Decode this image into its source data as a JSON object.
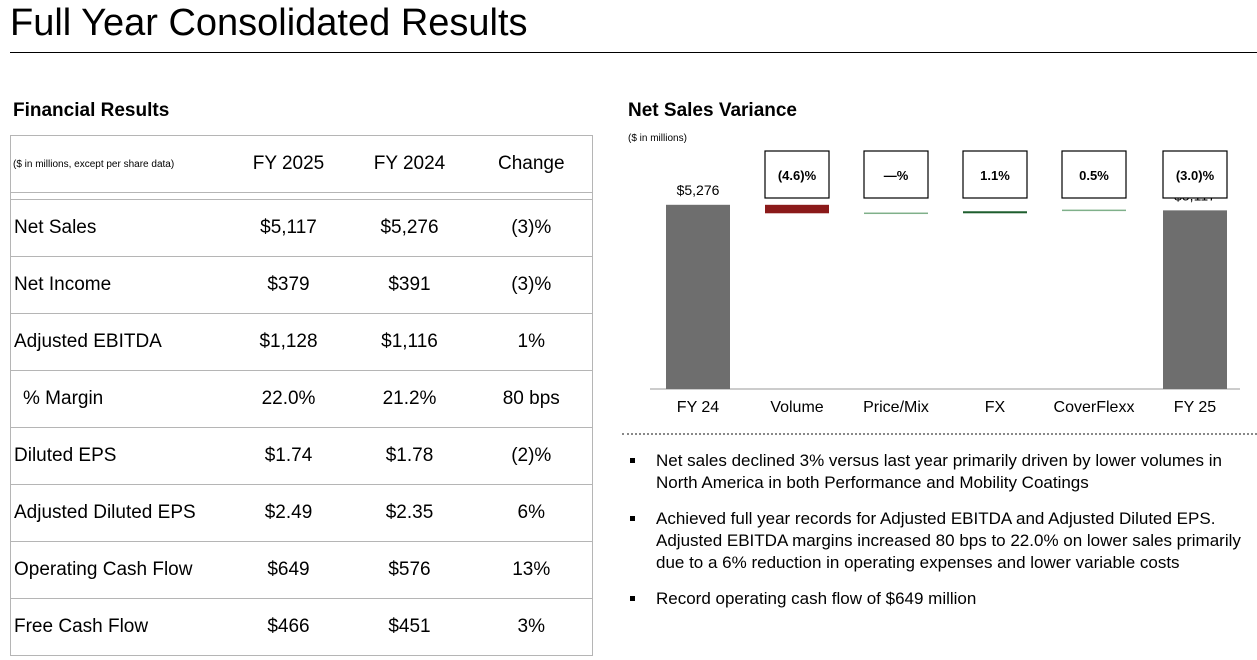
{
  "page": {
    "title": "Full Year Consolidated Results"
  },
  "financial_results": {
    "title": "Financial Results",
    "header_note": "($ in millions, except per share data)",
    "columns": [
      "FY 2025",
      "FY 2024",
      "Change"
    ],
    "rows": [
      {
        "label": "Net Sales",
        "fy2025": "$5,117",
        "fy2024": "$5,276",
        "change": "(3)%",
        "indent": false
      },
      {
        "label": "Net Income",
        "fy2025": "$379",
        "fy2024": "$391",
        "change": "(3)%",
        "indent": false
      },
      {
        "label": "Adjusted EBITDA",
        "fy2025": "$1,128",
        "fy2024": "$1,116",
        "change": "1%",
        "indent": false
      },
      {
        "label": "% Margin",
        "fy2025": "22.0%",
        "fy2024": "21.2%",
        "change": "80 bps",
        "indent": true
      },
      {
        "label": "Diluted EPS",
        "fy2025": "$1.74",
        "fy2024": "$1.78",
        "change": "(2)%",
        "indent": false
      },
      {
        "label": "Adjusted Diluted EPS",
        "fy2025": "$2.49",
        "fy2024": "$2.35",
        "change": "6%",
        "indent": false
      },
      {
        "label": "Operating Cash Flow",
        "fy2025": "$649",
        "fy2024": "$576",
        "change": "13%",
        "indent": false
      },
      {
        "label": "Free Cash Flow",
        "fy2025": "$466",
        "fy2024": "$451",
        "change": "3%",
        "indent": false
      }
    ]
  },
  "net_sales_variance": {
    "title": "Net Sales Variance",
    "units_note": "($ in millions)"
  },
  "chart_data": {
    "type": "bar",
    "subtype": "waterfall",
    "title": "Net Sales Variance",
    "ylabel": "($ in millions)",
    "categories": [
      "FY 24",
      "Volume",
      "Price/Mix",
      "FX",
      "CoverFlexx",
      "FY 25"
    ],
    "pct_labels": [
      "(4.6)%",
      "—%",
      "1.1%",
      "0.5%",
      "(3.0)%"
    ],
    "pct_label_categories": [
      "Volume",
      "Price/Mix",
      "FX",
      "CoverFlexx",
      "FY 25"
    ],
    "start_value": 5276,
    "end_value": 5117,
    "start_label": "$5,276",
    "end_label": "$5,117",
    "steps": [
      {
        "category": "Volume",
        "delta": -243,
        "color": "#8b1a1a"
      },
      {
        "category": "Price/Mix",
        "delta": 0,
        "color": "#7fb08a"
      },
      {
        "category": "FX",
        "delta": 58,
        "color": "#1e5e2e"
      },
      {
        "category": "CoverFlexx",
        "delta": 26,
        "color": "#7fb08a"
      }
    ],
    "total_bar_color": "#6e6e6e",
    "ylim": [
      0,
      5700
    ],
    "grid": false,
    "legend": "none"
  },
  "highlights": [
    "Net sales declined 3% versus last year primarily driven by lower volumes in North America in both Performance and Mobility Coatings",
    "Achieved full year records for Adjusted EBITDA and Adjusted Diluted EPS. Adjusted EBITDA margins increased 80 bps to 22.0% on lower sales primarily due to a 6% reduction in operating expenses and lower variable costs",
    "Record operating cash flow of $649 million"
  ]
}
